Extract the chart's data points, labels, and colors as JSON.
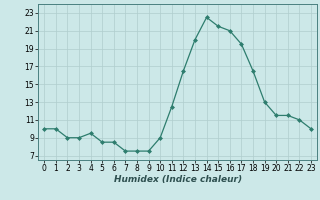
{
  "x": [
    0,
    1,
    2,
    3,
    4,
    5,
    6,
    7,
    8,
    9,
    10,
    11,
    12,
    13,
    14,
    15,
    16,
    17,
    18,
    19,
    20,
    21,
    22,
    23
  ],
  "y": [
    10,
    10,
    9,
    9,
    9.5,
    8.5,
    8.5,
    7.5,
    7.5,
    7.5,
    9,
    12.5,
    16.5,
    20,
    22.5,
    21.5,
    21,
    19.5,
    16.5,
    13,
    11.5,
    11.5,
    11,
    10
  ],
  "line_color": "#2e7d6e",
  "marker": "D",
  "marker_size": 2.0,
  "bg_color": "#cce8e8",
  "grid_color": "#b0cece",
  "xlabel": "Humidex (Indice chaleur)",
  "xlim": [
    -0.5,
    23.5
  ],
  "ylim": [
    6.5,
    24.0
  ],
  "yticks": [
    7,
    9,
    11,
    13,
    15,
    17,
    19,
    21,
    23
  ],
  "xticks": [
    0,
    1,
    2,
    3,
    4,
    5,
    6,
    7,
    8,
    9,
    10,
    11,
    12,
    13,
    14,
    15,
    16,
    17,
    18,
    19,
    20,
    21,
    22,
    23
  ],
  "tick_fontsize": 5.5,
  "xlabel_fontsize": 6.5
}
